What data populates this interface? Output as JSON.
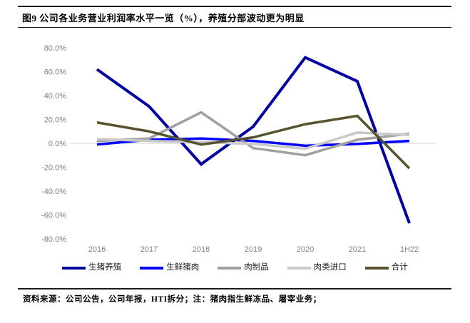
{
  "header": {
    "title": "图9  公司各业务营业利润率水平一览（%），养殖分部波动更为明显"
  },
  "footer": {
    "text": "资料来源：公司公告，公司年报，HTI拆分；注：猪肉指生鲜冻品、屠宰业务；"
  },
  "chart_data": {
    "type": "line",
    "title": "公司各业务营业利润率水平一览（%）",
    "categories": [
      "2016",
      "2017",
      "2018",
      "2019",
      "2020",
      "2021",
      "1H22"
    ],
    "series": [
      {
        "name": "生猪养殖",
        "color": "#0000A0",
        "stroke_width": 4,
        "values": [
          62,
          31,
          -17.5,
          14,
          72,
          52,
          -67
        ]
      },
      {
        "name": "生鲜猪肉",
        "color": "#0000FF",
        "stroke_width": 3.5,
        "values": [
          -1,
          3,
          4,
          2,
          -2,
          -0.5,
          2
        ]
      },
      {
        "name": "肉制品",
        "color": "#A0A0A0",
        "stroke_width": 3.5,
        "values": [
          2,
          4,
          26,
          -4,
          -10,
          3,
          8
        ]
      },
      {
        "name": "肉类进口",
        "color": "#C9C9C9",
        "stroke_width": 3.5,
        "values": [
          3.5,
          2,
          1,
          -0.5,
          -4.5,
          9,
          7
        ]
      },
      {
        "name": "合计",
        "color": "#56532D",
        "stroke_width": 3.5,
        "values": [
          17.5,
          10,
          -1,
          5,
          16,
          23,
          -21
        ]
      }
    ],
    "y_ticks": [
      {
        "value": 80,
        "label": "80.0%"
      },
      {
        "value": 60,
        "label": "60.0%"
      },
      {
        "value": 40,
        "label": "40.0%"
      },
      {
        "value": 20,
        "label": "20.0%"
      },
      {
        "value": 0,
        "label": "0.0%"
      },
      {
        "value": -20,
        "label": "-20.0%"
      },
      {
        "value": -40,
        "label": "-40.0%"
      },
      {
        "value": -60,
        "label": "-60.0%"
      },
      {
        "value": -80,
        "label": "-80.0%"
      }
    ],
    "ylim": [
      -80,
      80
    ],
    "grid": "zero-line-only",
    "legend_position": "bottom",
    "axis_label_color": "#808080",
    "zero_line_color": "#D9D9D9"
  }
}
